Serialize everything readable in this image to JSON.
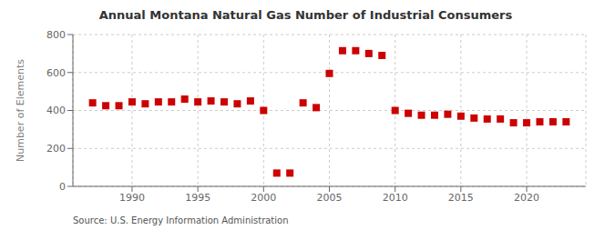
{
  "chart_data": {
    "type": "scatter",
    "title": "Annual Montana Natural Gas Number of Industrial Consumers",
    "ylabel": "Number of Elements",
    "source": "Source: U.S. Energy Information Administration",
    "x": [
      1987,
      1988,
      1989,
      1990,
      1991,
      1992,
      1993,
      1994,
      1995,
      1996,
      1997,
      1998,
      1999,
      2000,
      2001,
      2002,
      2003,
      2004,
      2005,
      2006,
      2007,
      2008,
      2009,
      2010,
      2011,
      2012,
      2013,
      2014,
      2015,
      2016,
      2017,
      2018,
      2019,
      2020,
      2021,
      2022,
      2023
    ],
    "values": [
      440,
      425,
      425,
      445,
      435,
      445,
      445,
      460,
      445,
      450,
      445,
      435,
      450,
      400,
      70,
      70,
      440,
      415,
      595,
      715,
      715,
      700,
      690,
      400,
      385,
      375,
      375,
      380,
      370,
      360,
      355,
      355,
      335,
      335,
      340,
      340,
      340
    ],
    "color": "#cc0000",
    "marker": "square",
    "xlim": [
      1985.5,
      2024.5
    ],
    "ylim": [
      0,
      800
    ],
    "xticks": [
      1990,
      1995,
      2000,
      2005,
      2010,
      2015,
      2020
    ],
    "yticks": [
      0,
      200,
      400,
      600,
      800
    ],
    "grid": true
  }
}
